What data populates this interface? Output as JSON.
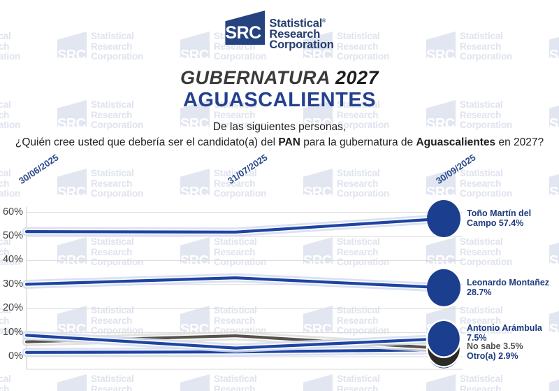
{
  "brand": {
    "logo_mark": "SRC",
    "logo_line1": "Statistical",
    "logo_line2": "Research",
    "logo_line3": "Corporation",
    "registered_mark": "®",
    "navy": "#24437f",
    "watermark_color": "#e2e6f1"
  },
  "header": {
    "title_italic": "GUBERNATURA",
    "title_year": "2027",
    "subtitle": "AGUASCALIENTES",
    "question_line1": "De las siguientes personas,",
    "question_line2_segments": [
      {
        "text": "¿Quién cree usted que debería ser el candidato(a) del ",
        "bold": false
      },
      {
        "text": "PAN",
        "bold": true
      },
      {
        "text": " para la gubernatura de ",
        "bold": false
      },
      {
        "text": "Aguascalientes",
        "bold": true
      },
      {
        "text": " en 2027?",
        "bold": false
      }
    ]
  },
  "chart_data": {
    "type": "line",
    "x_labels": [
      "30/06/2025",
      "31/07/2025",
      "30/09/2025"
    ],
    "y_tick_labels": [
      "0%",
      "10%",
      "20%",
      "30%",
      "40%",
      "50%",
      "60%"
    ],
    "ylim": [
      0,
      62
    ],
    "grid": true,
    "legend_position": "right-of-last-point",
    "series": [
      {
        "name": "Toño Martín del Campo",
        "values": [
          52.0,
          51.8,
          57.4
        ],
        "color": "#1e44a1",
        "marker_color": "#1c3e8f",
        "label_color": "#1b3a7d",
        "label_lines": [
          "Toño Martín del",
          "Campo 57.4%"
        ]
      },
      {
        "name": "Leonardo Montañez",
        "values": [
          30.1,
          32.8,
          28.7
        ],
        "color": "#1e44a1",
        "marker_color": "#1c3e8f",
        "label_color": "#1b3a7d",
        "label_lines": [
          "Leonardo Montañez",
          "28.7%"
        ]
      },
      {
        "name": "Antonio Arámbula",
        "values": [
          8.9,
          3.6,
          7.5
        ],
        "color": "#1e44a1",
        "marker_color": "#1c3e8f",
        "label_color": "#1b3a7d",
        "label_lines": [
          "Antonio Arámbula",
          "7.5%"
        ]
      },
      {
        "name": "No sabe",
        "values": [
          6.2,
          8.7,
          3.5
        ],
        "color": "#55524c",
        "marker_color": "#2b2a26",
        "label_color": "#4f4f4f",
        "label_lines": [
          "No sabe 3.5%"
        ]
      },
      {
        "name": "Otro(a)",
        "values": [
          1.8,
          2.0,
          2.9
        ],
        "color": "#1e44a1",
        "marker_color": "#1c3e8f",
        "label_color": "#1b3a7d",
        "label_lines": [
          "Otro(a) 2.9%"
        ]
      }
    ]
  }
}
